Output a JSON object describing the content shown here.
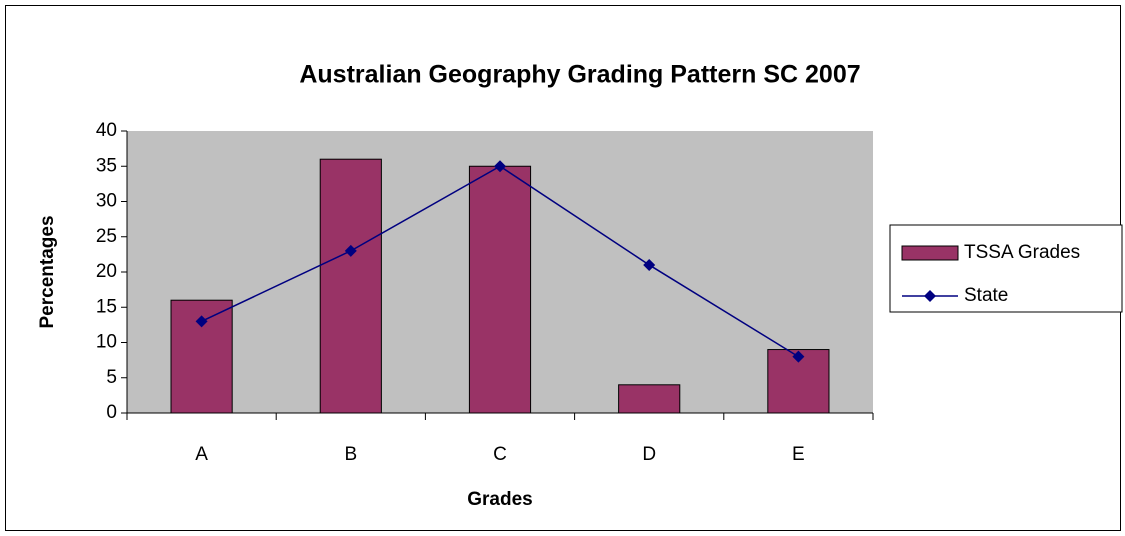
{
  "chart_data": {
    "type": "bar",
    "title": "Australian Geography Grading Pattern SC 2007",
    "x_label": "Grades",
    "y_label": "Percentages",
    "categories": [
      "A",
      "B",
      "C",
      "D",
      "E"
    ],
    "series": [
      {
        "name": "TSSA Grades",
        "type": "bar",
        "color": "#993366",
        "values": [
          16,
          36,
          35,
          4,
          9
        ]
      },
      {
        "name": "State",
        "type": "line",
        "color": "#000080",
        "values": [
          13,
          23,
          35,
          21,
          8
        ]
      }
    ],
    "ylim": [
      0,
      40
    ],
    "yticks": [
      0,
      5,
      10,
      15,
      20,
      25,
      30,
      35,
      40
    ],
    "grid": false,
    "plot_background": "#c0c0c0",
    "legend": "right"
  }
}
